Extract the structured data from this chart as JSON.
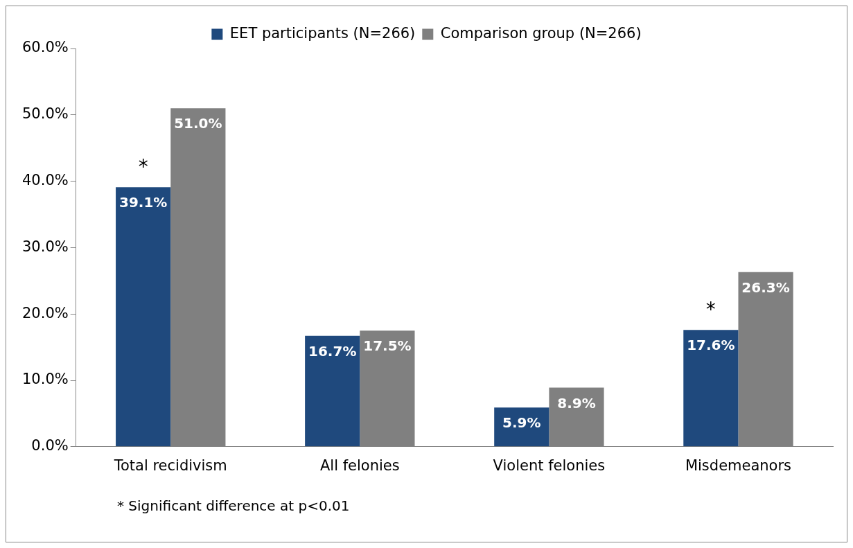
{
  "chart_data": {
    "type": "bar",
    "categories": [
      "Total recidivism",
      "All felonies",
      "Violent felonies",
      "Misdemeanors"
    ],
    "series": [
      {
        "name": "EET participants (N=266)",
        "color": "#1f497d",
        "values": [
          39.1,
          16.7,
          5.9,
          17.6
        ],
        "value_labels": [
          "39.1%",
          "16.7%",
          "5.9%",
          "17.6%"
        ]
      },
      {
        "name": "Comparison group (N=266)",
        "color": "#808080",
        "values": [
          51.0,
          17.5,
          8.9,
          26.3
        ],
        "value_labels": [
          "51.0%",
          "17.5%",
          "8.9%",
          "26.3%"
        ]
      }
    ],
    "ylim": [
      0,
      60
    ],
    "yticks": [
      {
        "value": 0,
        "label": "0.0%"
      },
      {
        "value": 10,
        "label": "10.0%"
      },
      {
        "value": 20,
        "label": "20.0%"
      },
      {
        "value": 30,
        "label": "30.0%"
      },
      {
        "value": 40,
        "label": "40.0%"
      },
      {
        "value": 50,
        "label": "50.0%"
      },
      {
        "value": 60,
        "label": "60.0%"
      }
    ],
    "grid": false,
    "legend": "top",
    "annotations": [
      {
        "text": "*",
        "x": "Total recidivism",
        "y": 42
      },
      {
        "text": "*",
        "x": "Misdemeanors",
        "y": 20.5
      },
      "* Significant difference at p<0.01"
    ]
  }
}
